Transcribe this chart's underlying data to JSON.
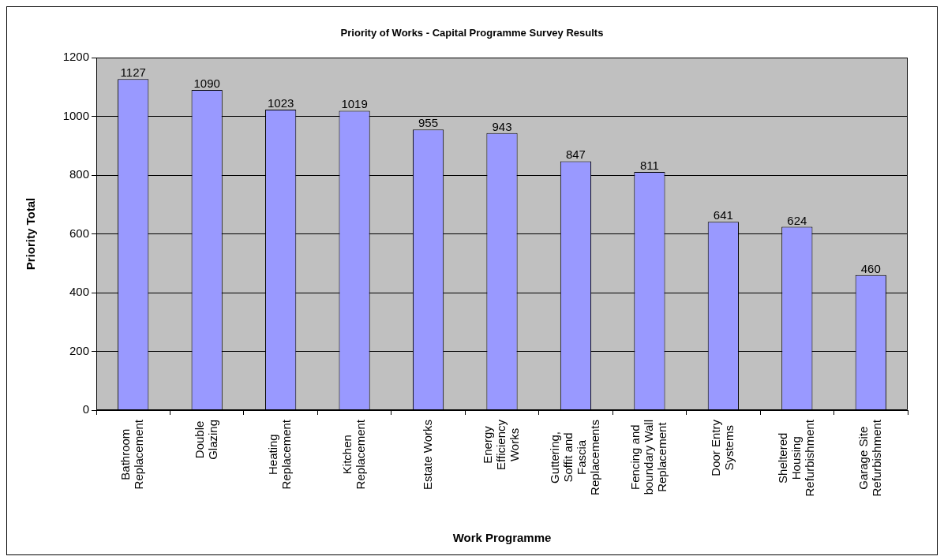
{
  "chart_data": {
    "type": "bar",
    "title": "Priority of Works - Capital Programme Survey Results",
    "xlabel": "Work Programme",
    "ylabel": "Priority Total",
    "categories": [
      "Bathroom Replacement",
      "Double Glazing",
      "Heating Replacement",
      "Kitchen Replacement",
      "Estate Works",
      "Energy Efficiency Works",
      "Guttering, Soffit and Fascia Replacements",
      "Fencing and boundary Wall Replacement",
      "Door Entry Systems",
      "Sheltered Housing Refurbishment",
      "Garage Site Refurbishment"
    ],
    "values": [
      1127,
      1090,
      1023,
      1019,
      955,
      943,
      847,
      811,
      641,
      624,
      460
    ],
    "color": "#9999ff",
    "ylim": [
      0,
      1200
    ],
    "yticks": [
      0,
      200,
      400,
      600,
      800,
      1000,
      1200
    ],
    "grid": "y",
    "data_labels": true,
    "legend": false
  }
}
